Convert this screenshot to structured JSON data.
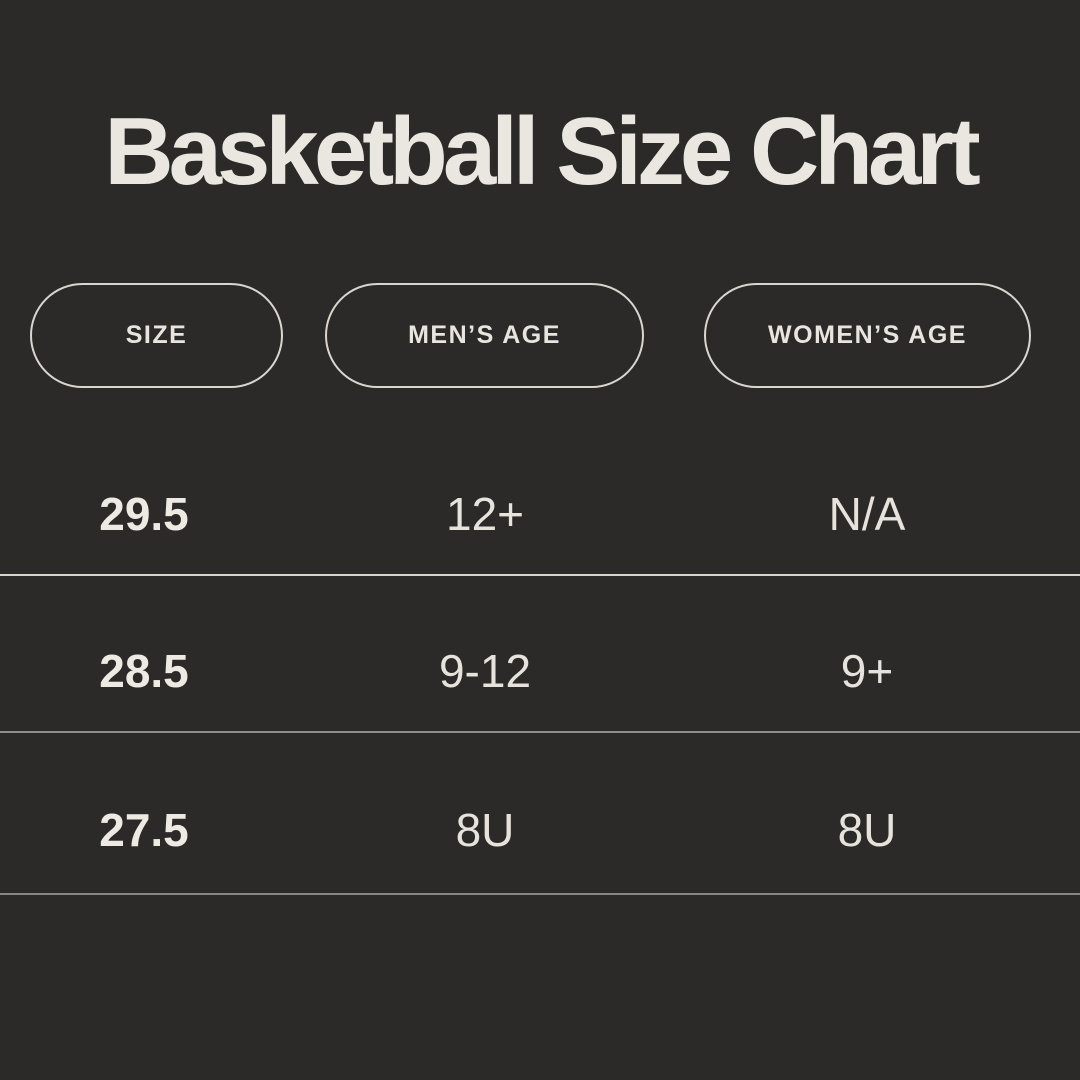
{
  "page": {
    "colors": {
      "background": "#2b2a28",
      "title_text": "#eae7e0",
      "pill_border": "#d9d6cf",
      "pill_text": "#e8e5de",
      "value_text": "#e6e3dc",
      "size_text": "#edeae4",
      "dividers": [
        "#d7d4ce",
        "#908e8a",
        "#888682"
      ]
    }
  },
  "chart_data": {
    "type": "table",
    "title": "Basketball Size Chart",
    "columns": [
      "SIZE",
      "MEN’S AGE",
      "WOMEN’S AGE"
    ],
    "rows": [
      [
        "29.5",
        "12+",
        "N/A"
      ],
      [
        "28.5",
        "9-12",
        "9+"
      ],
      [
        "27.5",
        "8U",
        "8U"
      ]
    ]
  }
}
